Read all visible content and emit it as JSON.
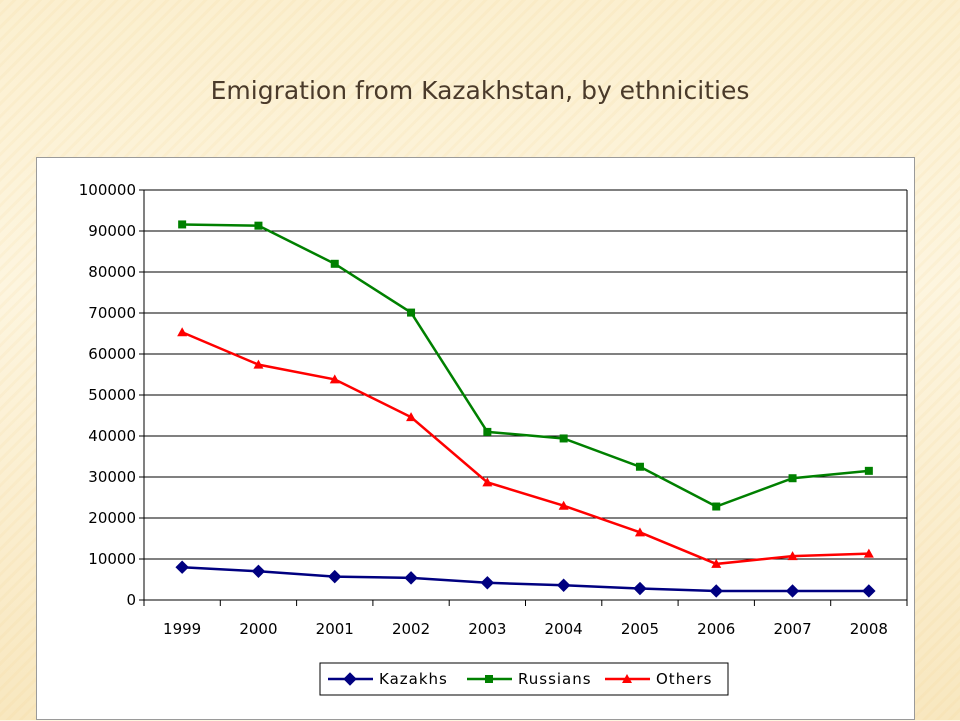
{
  "slide": {
    "title": "Emigration from Kazakhstan, by ethnicities"
  },
  "chart_data": {
    "type": "line",
    "title": "",
    "xlabel": "",
    "ylabel": "",
    "categories": [
      "1999",
      "2000",
      "2001",
      "2002",
      "2003",
      "2004",
      "2005",
      "2006",
      "2007",
      "2008"
    ],
    "ylim": [
      0,
      100000
    ],
    "yticks": [
      0,
      10000,
      20000,
      30000,
      40000,
      50000,
      60000,
      70000,
      80000,
      90000,
      100000
    ],
    "ytick_labels": [
      "0",
      "10000",
      "20000",
      "30000",
      "40000",
      "50000",
      "60000",
      "70000",
      "80000",
      "90000",
      "100000"
    ],
    "grid": "horizontal",
    "legend_position": "bottom",
    "series": [
      {
        "name": "Kazakhs",
        "color": "#000080",
        "marker": "diamond",
        "values": [
          8000,
          7000,
          5700,
          5400,
          4200,
          3600,
          2800,
          2200,
          2200,
          2200
        ]
      },
      {
        "name": "Russians",
        "color": "#008000",
        "marker": "square",
        "values": [
          91600,
          91300,
          82000,
          70100,
          41000,
          39400,
          32500,
          22800,
          29700,
          31500
        ]
      },
      {
        "name": "Others",
        "color": "#ff0000",
        "marker": "triangle",
        "values": [
          65300,
          57400,
          53800,
          44600,
          28700,
          23000,
          16500,
          8800,
          10700,
          11300
        ]
      }
    ]
  }
}
